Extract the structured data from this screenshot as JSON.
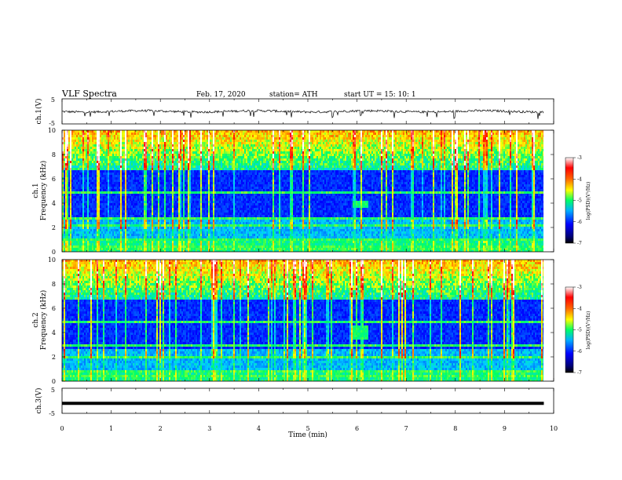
{
  "header": {
    "title": "VLF  Spectra",
    "date": "Feb. 17, 2020",
    "station": "station= ATH",
    "start": "start  UT  =    15: 10: 1"
  },
  "chart_data": {
    "type": "heatmap",
    "x_axis": {
      "label": "Time  (min)",
      "range": [
        0,
        10
      ],
      "ticks": [
        "0",
        "1",
        "2",
        "3",
        "4",
        "5",
        "6",
        "7",
        "8",
        "9",
        "10"
      ]
    },
    "panels": [
      {
        "kind": "line",
        "ylabel": "ch.1(V)",
        "yticks": [
          "5",
          "-5"
        ],
        "ylim": [
          -5,
          5
        ],
        "description_level": 0.0,
        "x_extent_min": 9.8
      },
      {
        "kind": "spectrogram",
        "ylabel": "ch.1\nFrequency  (kHz)",
        "ylabel_lines": [
          "ch.1",
          "Frequency  (kHz)"
        ],
        "yticks": [
          "0",
          "2",
          "4",
          "6",
          "8",
          "10"
        ],
        "ylim": [
          0,
          10
        ],
        "x_extent_min": 9.8,
        "colorbar": {
          "label": "log(PSD)(V²/Hz)",
          "ticks": [
            "-3",
            "-4",
            "-5",
            "-6",
            "-7"
          ],
          "range": [
            -7,
            -3
          ]
        },
        "features": {
          "strong_tones_khz": [
            0.3,
            0.55,
            1.1,
            1.6,
            2.2,
            2.8,
            5.0,
            6.6
          ],
          "event": {
            "t_min": [
              5.9,
              6.2
            ],
            "f_khz": [
              3.8,
              4.2
            ]
          }
        }
      },
      {
        "kind": "spectrogram",
        "ylabel": "ch.2\nFrequency  (kHz)",
        "ylabel_lines": [
          "ch.2",
          "Frequency  (kHz)"
        ],
        "yticks": [
          "0",
          "2",
          "4",
          "6",
          "8",
          "10"
        ],
        "ylim": [
          0,
          10
        ],
        "x_extent_min": 9.8,
        "colorbar": {
          "label": "log(PSD)(V²/Hz)",
          "ticks": [
            "-3",
            "-4",
            "-5",
            "-6",
            "-7"
          ],
          "range": [
            -7,
            -3
          ]
        },
        "features": {
          "strong_tones_khz": [
            0.5,
            0.9,
            1.4,
            2.0,
            3.0,
            3.5,
            5.0,
            6.2
          ],
          "event": {
            "t_min": [
              5.85,
              6.2
            ],
            "f_khz": [
              3.5,
              4.7
            ]
          }
        }
      },
      {
        "kind": "line",
        "ylabel": "ch.3(V)",
        "yticks": [
          "5",
          "-5"
        ],
        "ylim": [
          -5,
          5
        ],
        "description_level": -1.0,
        "x_extent_min": 9.8
      }
    ],
    "colors": {
      "colormap": [
        "#00007a",
        "#0000ff",
        "#0060ff",
        "#00d0ff",
        "#00ff66",
        "#ffff00",
        "#ff8800",
        "#ff0000",
        "#ffffff"
      ]
    }
  }
}
